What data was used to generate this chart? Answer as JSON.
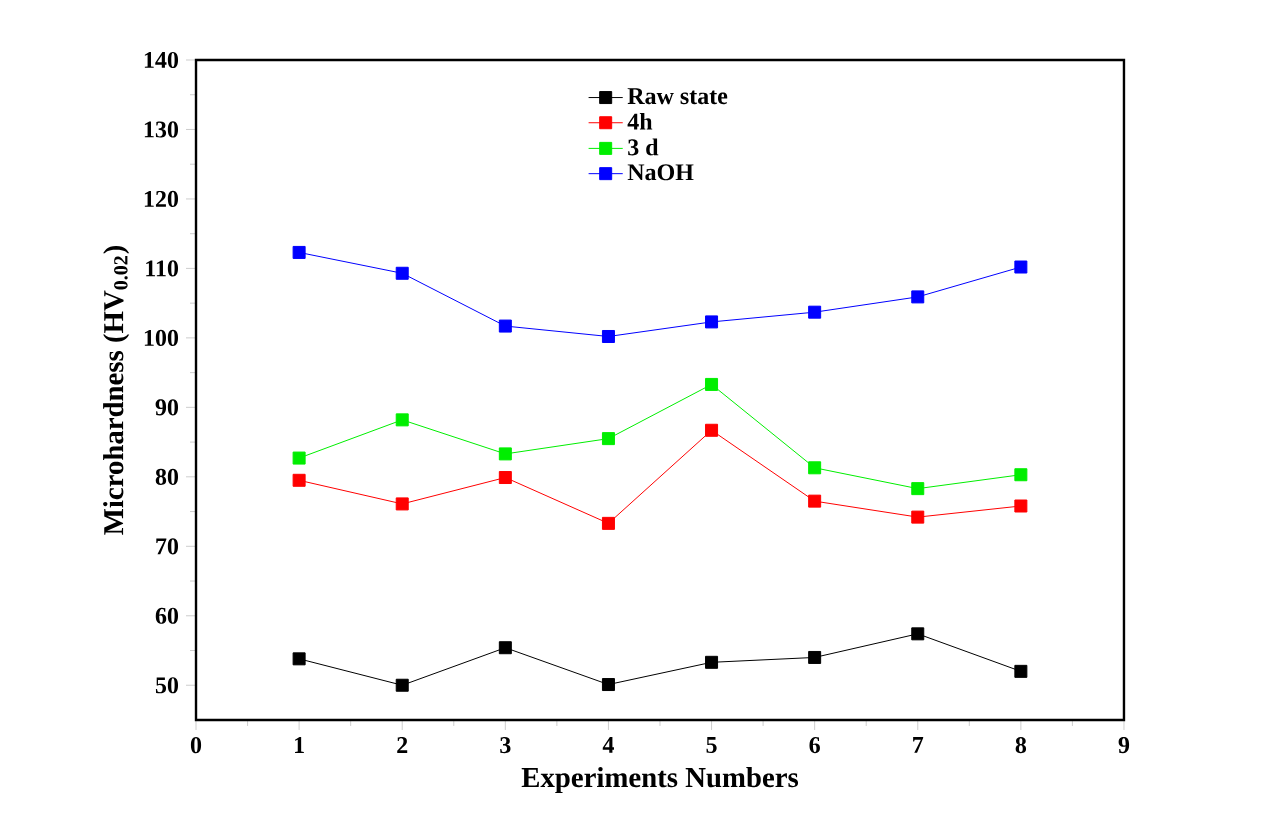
{
  "chart_data": {
    "type": "line",
    "xlabel": "Experiments Numbers",
    "ylabel": "Microhardness (HV$_{0.02}$)",
    "x": [
      1,
      2,
      3,
      4,
      5,
      6,
      7,
      8
    ],
    "series": [
      {
        "name": "Raw state",
        "color": "#000000",
        "values": [
          53.8,
          50.0,
          55.4,
          50.1,
          53.3,
          54.0,
          57.4,
          52.0
        ]
      },
      {
        "name": "4h",
        "color": "#ff0000",
        "values": [
          79.5,
          76.1,
          79.9,
          73.3,
          86.7,
          76.5,
          74.2,
          75.8
        ]
      },
      {
        "name": "3 d",
        "color": "#00ee00",
        "values": [
          82.7,
          88.2,
          83.3,
          85.5,
          93.3,
          81.3,
          78.3,
          80.3
        ]
      },
      {
        "name": "NaOH",
        "color": "#0000ff",
        "values": [
          112.3,
          109.3,
          101.7,
          100.2,
          102.3,
          103.7,
          105.9,
          110.2
        ]
      }
    ],
    "xlim": [
      0,
      9
    ],
    "ylim": [
      45,
      140
    ],
    "xticks": [
      0,
      1,
      2,
      3,
      4,
      5,
      6,
      7,
      8,
      9
    ],
    "yticks": [
      50,
      60,
      70,
      80,
      90,
      100,
      110,
      120,
      130,
      140
    ],
    "marker": "square",
    "line_style": "solid",
    "legend": "top",
    "grid": false
  }
}
